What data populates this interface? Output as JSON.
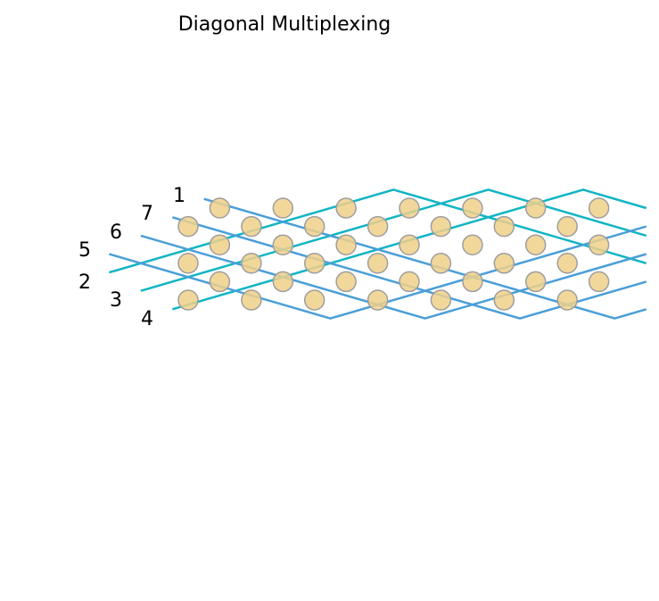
{
  "title": "Diagonal Multiplexing",
  "colors": {
    "wire_cyan": "#12b5c4",
    "wire_blue": "#4a9fd8",
    "node_fill": "#f0d08a",
    "node_stroke": "#9e9e9e",
    "background": "#ffffff"
  },
  "wire_labels": {
    "w1": "1",
    "w2": "2",
    "w3": "3",
    "w4": "4",
    "w5": "5",
    "w6": "6",
    "w7": "7"
  },
  "grid": {
    "columns": 14,
    "rows": 6
  }
}
